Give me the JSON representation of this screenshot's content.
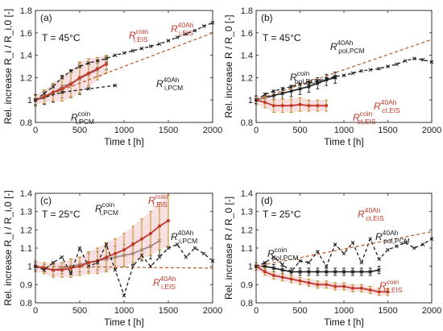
{
  "colors": {
    "black": "#1a1a1a",
    "red": "#c0392b",
    "dashred": "#b5541f",
    "shade": "#f4c9cf"
  },
  "chart_data": [
    {
      "type": "line",
      "panel_label": "(a)",
      "temperature": "T = 45°C",
      "xlabel": "Time t [h]",
      "ylabel": "Rel. increase R_i / R_i,0 [-]",
      "xlim": [
        0,
        2000
      ],
      "ylim": [
        0.8,
        1.8
      ],
      "xticks": [
        "0",
        "500",
        "1000",
        "1500",
        "2000"
      ],
      "yticks": [
        "0.8",
        "1",
        "1.2",
        "1.4",
        "1.6",
        "1.8"
      ],
      "series": [
        {
          "name": "R_i,PCM^coin",
          "style": "black-solid-errorbars",
          "x": [
            0,
            100,
            200,
            300,
            400,
            500,
            600,
            700,
            800
          ],
          "y": [
            1.0,
            1.02,
            1.06,
            1.12,
            1.15,
            1.19,
            1.23,
            1.27,
            1.33
          ],
          "err": [
            0.05,
            0.06,
            0.08,
            0.1,
            0.12,
            0.14,
            0.1,
            0.06,
            0.06
          ]
        },
        {
          "name": "R_i,EIS^coin",
          "style": "red-solid",
          "x": [
            0,
            100,
            200,
            300,
            400,
            500,
            600,
            700,
            800
          ],
          "y": [
            1.0,
            1.03,
            1.07,
            1.1,
            1.14,
            1.2,
            1.24,
            1.28,
            1.32
          ],
          "err": [
            0.04,
            0.06,
            0.08,
            0.11,
            0.12,
            0.14,
            0.13,
            0.1,
            0.08
          ]
        },
        {
          "name": "R_i,PCM^40Ah",
          "style": "black-dashed",
          "x": [
            0,
            100,
            200,
            300,
            400,
            500,
            600,
            700,
            800,
            900,
            1000,
            1100,
            1200,
            1300,
            1400,
            1500,
            1600,
            1700,
            1800,
            1900,
            2000
          ],
          "y": [
            1.0,
            1.06,
            1.12,
            1.2,
            1.26,
            1.3,
            1.33,
            1.35,
            1.37,
            1.4,
            1.42,
            1.44,
            1.46,
            1.48,
            1.5,
            1.53,
            1.56,
            1.59,
            1.62,
            1.66,
            1.69
          ]
        },
        {
          "name": "R_i,PCM^40Ah (lower)",
          "style": "black-dashed",
          "x": [
            0,
            300,
            600,
            900
          ],
          "y": [
            1.0,
            1.07,
            1.1,
            1.13
          ]
        },
        {
          "name": "R_i,EIS^40Ah",
          "style": "dashred-fit",
          "x": [
            0,
            2000
          ],
          "y": [
            1.0,
            1.6
          ]
        }
      ],
      "annotations": [
        {
          "text": "R",
          "sub": "i,EIS",
          "sup": "coin",
          "color": "red"
        },
        {
          "text": "R",
          "sub": "i,EIS",
          "sup": "40Ah",
          "color": "red"
        },
        {
          "text": "R",
          "sub": "i,PCM",
          "sup": "40Ah",
          "color": "black"
        },
        {
          "text": "R",
          "sub": "i,PCM",
          "sup": "coin",
          "color": "black"
        }
      ]
    },
    {
      "type": "line",
      "panel_label": "(b)",
      "temperature": "T = 45°C",
      "xlabel": "Time t [h]",
      "ylabel": "Rel. increase R / R_0 [-]",
      "xlim": [
        0,
        2000
      ],
      "ylim": [
        0.8,
        1.8
      ],
      "xticks": [
        "0",
        "500",
        "1000",
        "1500",
        "2000"
      ],
      "yticks": [
        "0.8",
        "1",
        "1.2",
        "1.4",
        "1.6",
        "1.8"
      ],
      "series": [
        {
          "name": "R_pol,PCM^coin",
          "style": "black-solid-errorbars",
          "x": [
            0,
            100,
            200,
            300,
            400,
            500,
            600,
            700,
            800,
            900
          ],
          "y": [
            1.0,
            1.02,
            1.04,
            1.06,
            1.08,
            1.1,
            1.12,
            1.15,
            1.18,
            1.2
          ],
          "err": [
            0.03,
            0.04,
            0.04,
            0.05,
            0.05,
            0.05,
            0.05,
            0.05,
            0.05,
            0.05
          ]
        },
        {
          "name": "R_ct,EIS^coin",
          "style": "red-solid-errorbars",
          "x": [
            0,
            100,
            200,
            300,
            400,
            500,
            600,
            700,
            800
          ],
          "y": [
            1.0,
            0.98,
            0.95,
            0.95,
            0.95,
            0.96,
            0.95,
            0.95,
            0.95
          ],
          "err": [
            0.04,
            0.05,
            0.06,
            0.06,
            0.06,
            0.06,
            0.05,
            0.05,
            0.05
          ]
        },
        {
          "name": "R_pol,PCM^40Ah",
          "style": "black-dashed",
          "x": [
            0,
            100,
            200,
            300,
            400,
            500,
            600,
            700,
            800,
            900,
            1000,
            1100,
            1200,
            1300,
            1400,
            1500,
            1600,
            1700,
            1800,
            1900,
            2000
          ],
          "y": [
            1.0,
            1.05,
            1.08,
            1.1,
            1.12,
            1.14,
            1.15,
            1.17,
            1.19,
            1.21,
            1.22,
            1.24,
            1.26,
            1.27,
            1.28,
            1.3,
            1.32,
            1.35,
            1.37,
            1.36,
            1.34
          ]
        },
        {
          "name": "R_ct,EIS^40Ah",
          "style": "dashred-fit",
          "x": [
            0,
            2000
          ],
          "y": [
            1.0,
            1.54
          ]
        }
      ],
      "annotations": [
        {
          "text": "R",
          "sub": "pol,PCM",
          "sup": "40Ah",
          "color": "black"
        },
        {
          "text": "R",
          "sub": "pol,PCM",
          "sup": "coin",
          "color": "black"
        },
        {
          "text": "R",
          "sub": "ct,EIS",
          "sup": "40Ah",
          "color": "red"
        },
        {
          "text": "R",
          "sub": "ct,EIS",
          "sup": "coin",
          "color": "red"
        }
      ]
    },
    {
      "type": "line",
      "panel_label": "(c)",
      "temperature": "T = 25°C",
      "xlabel": "Time t [h]",
      "ylabel": "Rel. increase R_i / R_i,0 [-]",
      "xlim": [
        0,
        2000
      ],
      "ylim": [
        0.8,
        1.4
      ],
      "xticks": [
        "0",
        "500",
        "1000",
        "1500",
        "2000"
      ],
      "yticks": [
        "0.8",
        "0.9",
        "1",
        "1.1",
        "1.2",
        "1.3",
        "1.4"
      ],
      "series": [
        {
          "name": "R_i,PCM^coin",
          "style": "black-solid-errorbars",
          "x": [
            0,
            100,
            200,
            300,
            400,
            500,
            600,
            700,
            800,
            900,
            1000,
            1100,
            1200,
            1300,
            1400
          ],
          "y": [
            1.0,
            0.99,
            0.98,
            0.99,
            1.0,
            1.01,
            1.02,
            1.03,
            1.04,
            1.05,
            1.06,
            1.07,
            1.09,
            1.11,
            1.14
          ],
          "err": [
            0.02,
            0.02,
            0.03,
            0.03,
            0.04,
            0.04,
            0.05,
            0.05,
            0.06,
            0.06,
            0.06,
            0.06,
            0.06,
            0.07,
            0.08
          ]
        },
        {
          "name": "R_i,EIS^coin",
          "style": "red-solid-errorbars",
          "x": [
            0,
            100,
            200,
            300,
            400,
            500,
            600,
            700,
            800,
            900,
            1000,
            1100,
            1200,
            1300,
            1400,
            1500
          ],
          "y": [
            1.0,
            0.99,
            0.98,
            0.98,
            0.99,
            1.0,
            1.02,
            1.03,
            1.05,
            1.07,
            1.09,
            1.12,
            1.15,
            1.18,
            1.22,
            1.25
          ],
          "err": [
            0.03,
            0.03,
            0.04,
            0.04,
            0.05,
            0.05,
            0.06,
            0.07,
            0.08,
            0.08,
            0.09,
            0.1,
            0.11,
            0.12,
            0.13,
            0.14
          ]
        },
        {
          "name": "R_i,PCM^40Ah",
          "style": "black-dashed",
          "x": [
            0,
            100,
            200,
            300,
            400,
            500,
            600,
            700,
            800,
            900,
            1000,
            1100,
            1200,
            1300,
            1400,
            1500,
            1600,
            1700,
            1800,
            1900,
            2000
          ],
          "y": [
            1.0,
            0.98,
            1.02,
            1.05,
            0.96,
            1.1,
            1.0,
            1.02,
            1.12,
            0.98,
            0.84,
            1.0,
            1.06,
            1.0,
            1.05,
            1.1,
            1.12,
            1.05,
            1.1,
            1.07,
            1.03
          ]
        },
        {
          "name": "R_i,EIS^40Ah",
          "style": "dashred-fit",
          "x": [
            0,
            2000
          ],
          "y": [
            1.0,
            0.99
          ]
        }
      ],
      "annotations": [
        {
          "text": "R",
          "sub": "i,PCM",
          "sup": "coin",
          "color": "black"
        },
        {
          "text": "R",
          "sub": "i,EIS",
          "sup": "coin",
          "color": "red"
        },
        {
          "text": "R",
          "sub": "i,PCM",
          "sup": "40Ah",
          "color": "black"
        },
        {
          "text": "R",
          "sub": "i,EIS",
          "sup": "40Ah",
          "color": "red"
        }
      ]
    },
    {
      "type": "line",
      "panel_label": "(d)",
      "temperature": "T = 25°C",
      "xlabel": "Time t [h]",
      "ylabel": "Rel. increase R / R_0 [-]",
      "xlim": [
        0,
        2000
      ],
      "ylim": [
        0.8,
        1.4
      ],
      "xticks": [
        "0",
        "500",
        "1000",
        "1500",
        "2000"
      ],
      "yticks": [
        "0.8",
        "0.9",
        "1",
        "1.1",
        "1.2",
        "1.3",
        "1.4"
      ],
      "series": [
        {
          "name": "R_pol,PCM^coin",
          "style": "black-solid-errorbars",
          "x": [
            0,
            100,
            200,
            300,
            400,
            500,
            600,
            700,
            800,
            900,
            1000,
            1100,
            1200,
            1300,
            1400
          ],
          "y": [
            1.0,
            1.0,
            0.99,
            0.98,
            0.97,
            0.97,
            0.97,
            0.97,
            0.97,
            0.97,
            0.97,
            0.97,
            0.97,
            0.97,
            0.98
          ],
          "err": [
            0.02,
            0.02,
            0.02,
            0.02,
            0.02,
            0.02,
            0.02,
            0.02,
            0.02,
            0.02,
            0.02,
            0.02,
            0.02,
            0.02,
            0.02
          ]
        },
        {
          "name": "R_ct,EIS^coin",
          "style": "red-solid-errorbars",
          "x": [
            0,
            100,
            200,
            300,
            400,
            500,
            600,
            700,
            800,
            900,
            1000,
            1100,
            1200,
            1300,
            1400,
            1500
          ],
          "y": [
            1.0,
            0.97,
            0.95,
            0.94,
            0.93,
            0.92,
            0.91,
            0.9,
            0.9,
            0.89,
            0.89,
            0.88,
            0.88,
            0.87,
            0.86,
            0.86
          ],
          "err": [
            0.02,
            0.02,
            0.02,
            0.02,
            0.02,
            0.02,
            0.02,
            0.02,
            0.02,
            0.02,
            0.02,
            0.02,
            0.02,
            0.02,
            0.02,
            0.02
          ]
        },
        {
          "name": "R_pol,PCM^40Ah",
          "style": "black-dashed",
          "x": [
            0,
            100,
            200,
            300,
            400,
            500,
            600,
            700,
            800,
            900,
            1000,
            1100,
            1200,
            1300,
            1400,
            1500,
            1600,
            1700,
            1800,
            1900,
            2000
          ],
          "y": [
            1.0,
            1.02,
            1.05,
            1.01,
            0.97,
            1.03,
            1.02,
            1.08,
            1.0,
            1.12,
            1.07,
            1.13,
            1.02,
            1.15,
            1.04,
            1.09,
            1.11,
            1.13,
            1.1,
            1.12,
            1.15
          ]
        },
        {
          "name": "R_ct,EIS^40Ah",
          "style": "dashred-fit",
          "x": [
            0,
            2000
          ],
          "y": [
            1.0,
            1.19
          ]
        }
      ],
      "annotations": [
        {
          "text": "R",
          "sub": "ct,EIS",
          "sup": "40Ah",
          "color": "red"
        },
        {
          "text": "R",
          "sub": "pol,PCM",
          "sup": "40Ah",
          "color": "black"
        },
        {
          "text": "R",
          "sub": "pol,PCM",
          "sup": "coin",
          "color": "black"
        },
        {
          "text": "R",
          "sub": "ct,EIS",
          "sup": "coin",
          "color": "red"
        }
      ]
    }
  ]
}
